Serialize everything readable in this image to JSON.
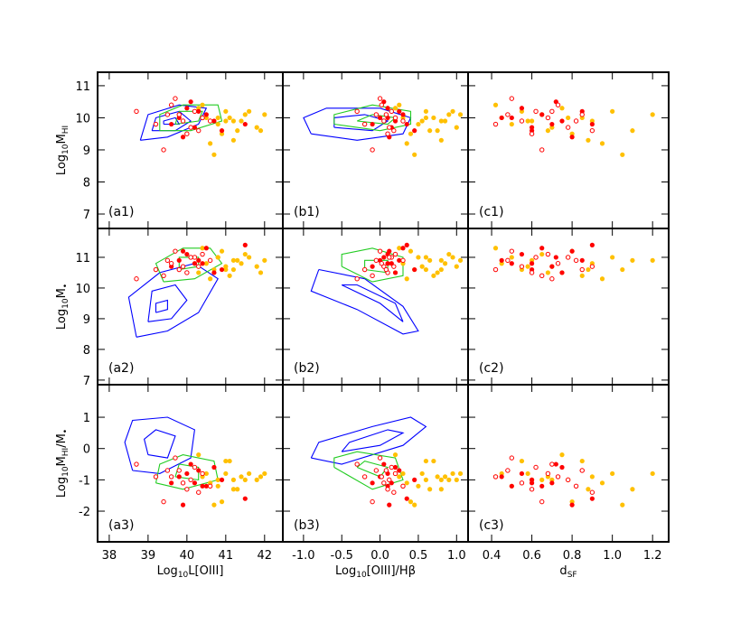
{
  "chart_data": {
    "type": "scatter-matrix",
    "columns": [
      {
        "xlabel": [
          {
            "t": "Log"
          },
          {
            "t": "10",
            "sub": true
          },
          {
            "t": "L[OIII]"
          }
        ],
        "xlim": [
          37.7,
          42.47
        ],
        "xticks": [
          38,
          39,
          40,
          41,
          42
        ],
        "panel_labels": [
          "(a1)",
          "(a2)",
          "(a3)"
        ],
        "contours": [
          [
            {
              "color": "#0000ff",
              "x": [
                38.8,
                39.5,
                40.3,
                40.5,
                39.8,
                39.0,
                38.8,
                null,
                39.1,
                39.7,
                40.1,
                39.8,
                39.2,
                39.1,
                null,
                39.4,
                39.8,
                39.7,
                39.4,
                39.4
              ],
              "y": [
                9.3,
                9.4,
                9.8,
                10.3,
                10.4,
                10.1,
                9.3,
                null,
                9.6,
                9.6,
                9.9,
                10.2,
                10.0,
                9.6,
                null,
                9.8,
                9.8,
                10.0,
                9.9,
                9.8
              ]
            },
            {
              "color": "#22cc22",
              "x": [
                39.3,
                40.1,
                40.9,
                40.8,
                39.9,
                39.3,
                39.3,
                null,
                39.7,
                40.3,
                40.4,
                39.8,
                39.7
              ],
              "y": [
                9.6,
                9.6,
                9.9,
                10.4,
                10.4,
                10.1,
                9.6,
                null,
                9.8,
                9.9,
                10.2,
                10.2,
                9.8
              ]
            }
          ],
          [
            {
              "color": "#0000ff",
              "x": [
                38.7,
                39.5,
                40.3,
                40.8,
                40.2,
                39.3,
                38.5,
                38.7,
                null,
                39.0,
                39.6,
                40.0,
                39.7,
                39.1,
                39.0,
                null,
                39.2,
                39.5,
                39.5,
                39.2,
                39.2
              ],
              "y": [
                8.4,
                8.6,
                9.2,
                10.3,
                10.8,
                10.5,
                9.7,
                8.4,
                null,
                8.9,
                9.0,
                9.6,
                10.1,
                9.9,
                8.9,
                null,
                9.2,
                9.3,
                9.6,
                9.5,
                9.2
              ]
            },
            {
              "color": "#22cc22",
              "x": [
                39.4,
                40.2,
                40.9,
                40.6,
                39.9,
                39.2,
                39.4,
                null,
                39.8,
                40.3,
                40.3,
                39.8,
                39.8
              ],
              "y": [
                10.2,
                10.3,
                10.8,
                11.3,
                11.3,
                10.8,
                10.2,
                null,
                10.6,
                10.7,
                11.0,
                11.0,
                10.6
              ]
            }
          ],
          [
            {
              "color": "#0000ff",
              "x": [
                38.6,
                39.3,
                40.1,
                40.2,
                39.5,
                38.6,
                38.4,
                38.6,
                null,
                39.0,
                39.5,
                39.7,
                39.2,
                38.9,
                39.0
              ],
              "y": [
                -0.7,
                -0.8,
                -0.3,
                0.6,
                1.0,
                0.9,
                0.2,
                -0.7,
                null,
                -0.2,
                -0.3,
                0.4,
                0.6,
                0.3,
                -0.2
              ]
            },
            {
              "color": "#22cc22",
              "x": [
                39.2,
                39.9,
                40.8,
                40.7,
                39.9,
                39.3,
                39.2,
                null,
                39.7,
                40.3,
                40.3,
                39.8,
                39.7
              ],
              "y": [
                -1.1,
                -1.3,
                -1.0,
                -0.4,
                -0.2,
                -0.5,
                -1.1,
                null,
                -0.9,
                -1.0,
                -0.6,
                -0.5,
                -0.9
              ]
            }
          ]
        ]
      },
      {
        "xlabel": [
          {
            "t": "Log"
          },
          {
            "t": "10",
            "sub": true
          },
          {
            "t": "[OIII]/Hβ"
          }
        ],
        "xlim": [
          -1.27,
          1.15
        ],
        "xticks": [
          {
            "value": -1,
            "label": "-1.0"
          },
          {
            "value": -0.5,
            "label": "-0.5"
          },
          {
            "value": 0,
            "label": "0.0"
          },
          0.5,
          {
            "value": 1,
            "label": "1.0"
          }
        ],
        "panel_labels": [
          "(b1)",
          "(b2)",
          "(b3)"
        ],
        "contours": [
          [
            {
              "color": "#0000ff",
              "x": [
                -0.9,
                -0.3,
                0.3,
                0.4,
                0.0,
                -0.7,
                -1.0,
                -0.9,
                null,
                -0.6,
                -0.1,
                0.1,
                -0.2,
                -0.6,
                -0.6
              ],
              "y": [
                9.5,
                9.3,
                9.5,
                10.0,
                10.3,
                10.3,
                10.0,
                9.5,
                null,
                9.7,
                9.6,
                9.9,
                10.1,
                10.0,
                9.7
              ]
            },
            {
              "color": "#22cc22",
              "x": [
                -0.6,
                0.0,
                0.4,
                0.4,
                -0.1,
                -0.6,
                -0.6,
                null,
                -0.3,
                0.1,
                0.2,
                -0.1,
                -0.3
              ],
              "y": [
                9.8,
                9.6,
                9.8,
                10.2,
                10.4,
                10.1,
                9.8,
                null,
                9.9,
                9.8,
                10.0,
                10.1,
                9.9
              ]
            }
          ],
          [
            {
              "color": "#0000ff",
              "x": [
                -0.8,
                -0.9,
                -0.3,
                0.3,
                0.5,
                0.3,
                -0.2,
                -0.8,
                null,
                -0.5,
                0.0,
                0.3,
                0.2,
                -0.3,
                -0.5
              ],
              "y": [
                10.6,
                9.9,
                9.3,
                8.5,
                8.6,
                9.4,
                10.3,
                10.6,
                null,
                10.1,
                9.5,
                8.9,
                9.5,
                10.1,
                10.1
              ]
            },
            {
              "color": "#22cc22",
              "x": [
                -0.5,
                -0.1,
                0.3,
                0.3,
                -0.1,
                -0.5,
                -0.5,
                null,
                -0.2,
                0.1,
                0.1,
                -0.2,
                -0.2
              ],
              "y": [
                10.7,
                10.2,
                10.4,
                11.0,
                11.3,
                11.1,
                10.7,
                null,
                10.6,
                10.5,
                10.9,
                10.9,
                10.6
              ]
            }
          ],
          [
            {
              "color": "#0000ff",
              "x": [
                -0.9,
                -0.5,
                0.3,
                0.6,
                0.4,
                -0.1,
                -0.8,
                -0.9,
                null,
                -0.5,
                0.0,
                0.3,
                0.1,
                -0.4,
                -0.5
              ],
              "y": [
                -0.3,
                -0.5,
                0.1,
                0.7,
                1.0,
                0.7,
                0.2,
                -0.3,
                null,
                -0.1,
                0.1,
                0.5,
                0.6,
                0.2,
                -0.1
              ]
            },
            {
              "color": "#22cc22",
              "x": [
                -0.6,
                -0.1,
                0.3,
                0.2,
                -0.3,
                -0.6,
                -0.6,
                null,
                -0.3,
                0.0,
                0.1,
                -0.2,
                -0.3
              ],
              "y": [
                -0.6,
                -1.3,
                -1.0,
                -0.3,
                -0.1,
                -0.3,
                -0.6,
                null,
                -0.6,
                -0.9,
                -0.6,
                -0.4,
                -0.6
              ]
            }
          ]
        ]
      },
      {
        "xlabel": [
          {
            "t": "d"
          },
          {
            "t": "SF",
            "sub": true
          }
        ],
        "xlim": [
          0.283,
          1.28
        ],
        "xticks": [
          0.4,
          0.6,
          0.8,
          {
            "value": 1,
            "label": "1.0"
          },
          1.2
        ],
        "panel_labels": [
          "(c1)",
          "(c2)",
          "(c3)"
        ]
      }
    ],
    "rows": [
      {
        "ylabel": [
          {
            "t": "Log"
          },
          {
            "t": "10",
            "sub": true
          },
          {
            "t": "M"
          },
          {
            "t": "HI",
            "sub": true
          }
        ],
        "ylim": [
          6.55,
          11.42
        ],
        "yticks": [
          7,
          8,
          9,
          10,
          11
        ]
      },
      {
        "ylabel": [
          {
            "t": "Log"
          },
          {
            "t": "10",
            "sub": true
          },
          {
            "t": "M"
          },
          {
            "t": "•",
            "sub": true
          }
        ],
        "ylim": [
          6.85,
          11.94
        ],
        "yticks": [
          7,
          8,
          9,
          10,
          11
        ]
      },
      {
        "ylabel": [
          {
            "t": "Log"
          },
          {
            "t": "10",
            "sub": true
          },
          {
            "t": "M"
          },
          {
            "t": "HI",
            "sub": true
          },
          {
            "t": "/M"
          },
          {
            "t": "•",
            "sub": true
          }
        ],
        "ylim": [
          -2.98,
          2.04
        ],
        "yticks": [
          -2,
          -1,
          0,
          1
        ]
      }
    ],
    "series": [
      {
        "color": "#ffc000",
        "marker": "filled",
        "x": [
          [
            40.5,
            40.8,
            41.0,
            41.2,
            41.5,
            41.8,
            40.3,
            40.9,
            41.1,
            41.4,
            40.6,
            41.6,
            40.7,
            41.3,
            42.0,
            40.4,
            41.0,
            41.9,
            40.8,
            41.2
          ],
          [
            0.3,
            0.5,
            0.6,
            0.8,
            0.9,
            1.0,
            0.2,
            0.4,
            0.7,
            0.85,
            0.35,
            0.95,
            0.45,
            0.65,
            1.05,
            0.25,
            0.55,
            0.75,
            0.6,
            0.8
          ],
          [
            0.45,
            0.5,
            0.55,
            0.6,
            0.65,
            0.7,
            0.75,
            0.8,
            0.85,
            0.9,
            0.95,
            1.0,
            1.05,
            1.1,
            1.2,
            0.42,
            0.58,
            0.68,
            0.78,
            0.88
          ]
        ],
        "y": [
          [
            10.0,
            9.8,
            10.2,
            9.9,
            10.1,
            9.7,
            10.3,
            9.5,
            10.0,
            9.9,
            9.2,
            10.2,
            8.85,
            9.6,
            10.1,
            10.4,
            9.9,
            9.6,
            10.0,
            9.3
          ],
          [
            10.8,
            11.0,
            10.6,
            10.9,
            11.1,
            10.7,
            10.5,
            11.2,
            10.4,
            10.8,
            10.3,
            11.0,
            10.6,
            10.9,
            10.9,
            11.3,
            10.7,
            10.5,
            11.0,
            10.6
          ],
          [
            -0.8,
            -1.2,
            -0.4,
            -1.0,
            -1.0,
            -1.0,
            -0.2,
            -1.7,
            -0.4,
            -0.9,
            -1.1,
            -0.8,
            -1.8,
            -1.3,
            -0.8,
            -0.9,
            -0.8,
            -0.9,
            -1.0,
            -1.3
          ]
        ]
      },
      {
        "color": "#ff0000",
        "marker": "filled",
        "x": [
          [
            39.8,
            40.0,
            40.2,
            40.5,
            39.6,
            40.1,
            40.7,
            39.9,
            40.3,
            40.9,
            40.4,
            41.5
          ],
          [
            0.0,
            0.1,
            0.15,
            0.3,
            -0.1,
            0.05,
            0.2,
            0.12,
            0.25,
            0.45,
            0.1,
            0.35
          ],
          [
            0.45,
            0.55,
            0.6,
            0.65,
            0.7,
            0.72,
            0.75,
            0.8,
            0.85,
            0.6,
            0.5,
            0.9
          ]
        ],
        "y": [
          [
            10.0,
            10.3,
            9.7,
            10.1,
            9.8,
            10.5,
            9.9,
            9.4,
            10.2,
            9.6,
            10.0,
            9.8
          ],
          [
            10.9,
            11.1,
            10.8,
            11.3,
            10.7,
            11.0,
            10.5,
            11.2,
            10.9,
            10.6,
            10.8,
            11.4
          ],
          [
            -0.9,
            -0.8,
            -1.1,
            -1.2,
            -1.1,
            -0.5,
            -0.6,
            -1.8,
            -0.7,
            -1.0,
            -1.2,
            -1.6
          ]
        ]
      },
      {
        "color": "#ff0000",
        "marker": "open",
        "x": [
          [
            39.2,
            39.5,
            39.7,
            39.9,
            40.0,
            40.2,
            39.4,
            40.4,
            38.7,
            39.6,
            40.1,
            40.6,
            39.8,
            40.3
          ],
          [
            -0.2,
            -0.05,
            0.0,
            0.05,
            0.1,
            0.15,
            -0.1,
            0.2,
            -0.3,
            0.02,
            0.12,
            0.3,
            0.08,
            0.18
          ],
          [
            0.42,
            0.48,
            0.5,
            0.55,
            0.6,
            0.62,
            0.65,
            0.68,
            0.7,
            0.73,
            0.78,
            0.82,
            0.85,
            0.9
          ]
        ],
        "y": [
          [
            9.8,
            10.1,
            10.6,
            9.9,
            9.5,
            10.2,
            9.0,
            10.0,
            10.2,
            10.4,
            9.7,
            9.9,
            10.1,
            9.6
          ],
          [
            10.6,
            10.9,
            11.2,
            10.7,
            10.5,
            11.0,
            10.4,
            11.1,
            10.3,
            10.8,
            11.0,
            10.9,
            10.6,
            10.7
          ],
          [
            -0.9,
            -0.7,
            -0.3,
            -1.1,
            -1.3,
            -0.6,
            -1.7,
            -0.8,
            -0.5,
            -0.9,
            -1.0,
            -1.2,
            -0.7,
            -1.4
          ]
        ]
      }
    ]
  }
}
